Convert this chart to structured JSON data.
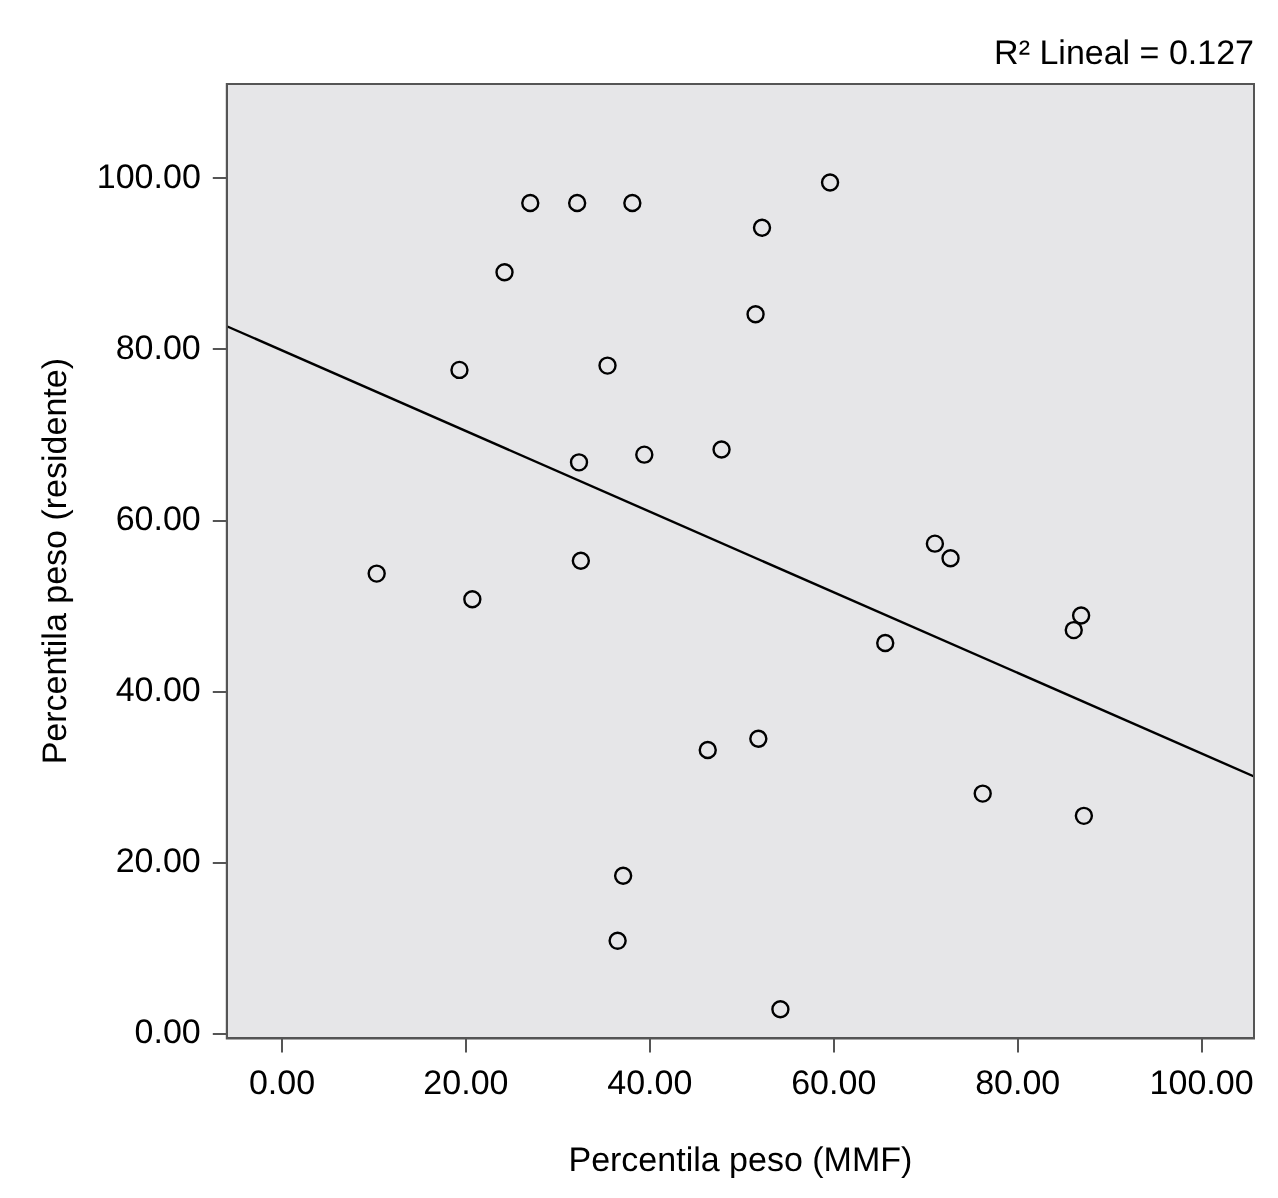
{
  "chart_data": {
    "type": "scatter",
    "xlabel": "Percentila peso (MMF)",
    "ylabel": "Percentila peso (residente)",
    "annotations": [
      "R² Lineal = 0.127"
    ],
    "xlim": [
      -6,
      105.7
    ],
    "ylim": [
      -0.5,
      111
    ],
    "xticks": [
      {
        "value": 0,
        "label": "0.00"
      },
      {
        "value": 20,
        "label": "20.00"
      },
      {
        "value": 40,
        "label": "40.00"
      },
      {
        "value": 60,
        "label": "60.00"
      },
      {
        "value": 80,
        "label": "80.00"
      },
      {
        "value": 100,
        "label": "100.00"
      }
    ],
    "yticks": [
      {
        "value": 0,
        "label": "0.00"
      },
      {
        "value": 20,
        "label": "20.00"
      },
      {
        "value": 40,
        "label": "40.00"
      },
      {
        "value": 60,
        "label": "60.00"
      },
      {
        "value": 80,
        "label": "80.00"
      },
      {
        "value": 100,
        "label": "100.00"
      }
    ],
    "grid": false,
    "legend": false,
    "marker": "circle",
    "series": [
      {
        "color": "#000000",
        "x": [
          27.0,
          32.1,
          38.1,
          24.2,
          19.3,
          35.4,
          32.3,
          39.4,
          47.8,
          10.3,
          20.7,
          32.5,
          46.3,
          37.1,
          36.5,
          59.6,
          52.2,
          51.5,
          71.0,
          72.7,
          86.9,
          86.1,
          65.6,
          51.8,
          76.2,
          87.2,
          54.2
        ],
        "values": [
          97.1,
          97.1,
          97.1,
          89.0,
          77.6,
          78.1,
          66.8,
          67.7,
          68.3,
          53.8,
          50.8,
          55.3,
          33.2,
          18.5,
          10.9,
          99.5,
          94.2,
          84.1,
          57.3,
          55.6,
          48.9,
          47.2,
          45.7,
          34.5,
          28.1,
          25.5,
          2.9
        ]
      },
      {
        "type": "line",
        "color": "#000000",
        "x": [
          -6,
          105.7
        ],
        "values": [
          82.7,
          30.1
        ],
        "marker": "none",
        "line_style": "solid"
      }
    ]
  }
}
